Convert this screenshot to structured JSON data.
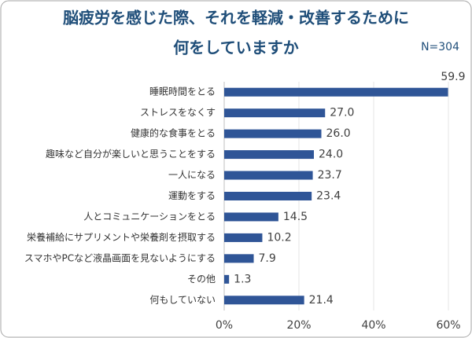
{
  "chart_data": {
    "type": "barh",
    "title": [
      "脳疲労を感じた際、それを軽減・改善するために",
      "何をしていますか"
    ],
    "annotation": "N=304",
    "categories": [
      "睡眠時間をとる",
      "ストレスをなくす",
      "健康的な食事をとる",
      "趣味など自分が楽しいと思うことをする",
      "一人になる",
      "運動をする",
      "人とコミュニケーションをとる",
      "栄養補給にサプリメントや栄養剤を摂取する",
      "スマホやPCなど液晶画面を見ないようにする",
      "その他",
      "何もしていない"
    ],
    "values": [
      59.9,
      27.0,
      26.0,
      24.0,
      23.7,
      23.4,
      14.5,
      10.2,
      7.9,
      1.3,
      21.4
    ],
    "value_labels": [
      "59.9",
      "27.0",
      "26.0",
      "24.0",
      "23.7",
      "23.4",
      "14.5",
      "10.2",
      "7.9",
      "1.3",
      "21.4"
    ],
    "color": "#2f5597",
    "xlim": [
      0,
      60
    ],
    "xticks": [
      {
        "value": 0,
        "label": "0%"
      },
      {
        "value": 20,
        "label": "20%"
      },
      {
        "value": 40,
        "label": "40%"
      },
      {
        "value": 60,
        "label": "60%"
      }
    ],
    "grid": true
  }
}
